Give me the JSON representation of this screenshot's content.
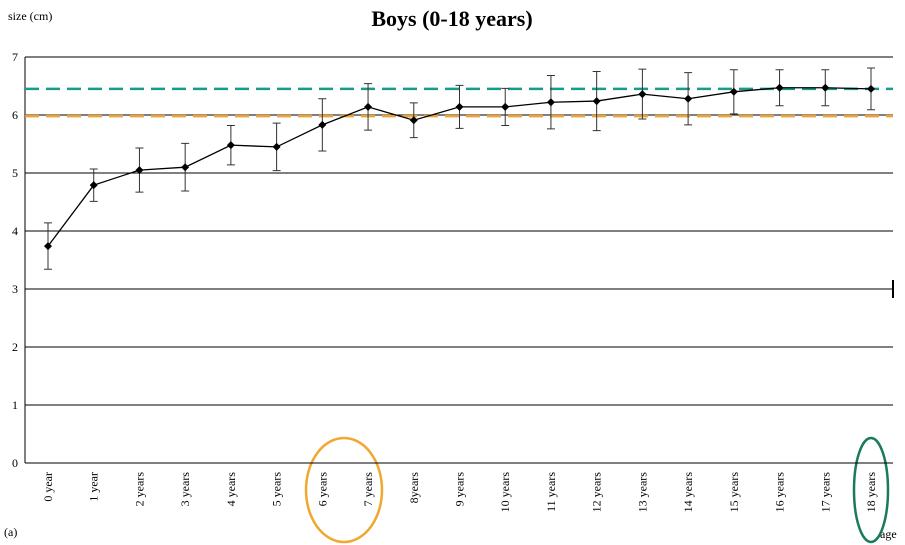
{
  "chart_data": {
    "type": "line",
    "title": "Boys (0-18 years)",
    "y_label": "size (cm)",
    "x_label": "age",
    "panel_label": "(a)",
    "categories": [
      "0 year",
      "1 year",
      "2 years",
      "3 years",
      "4 years",
      "5 years",
      "6 years",
      "7 years",
      "8years",
      "9 years",
      "10 years",
      "11 years",
      "12 years",
      "13 years",
      "14 years",
      "15 years",
      "16 years",
      "17 years",
      "18 years"
    ],
    "series": [
      {
        "color": "#000000",
        "values": [
          3.74,
          4.79,
          5.05,
          5.1,
          5.48,
          5.45,
          5.83,
          6.14,
          5.91,
          6.14,
          6.14,
          6.22,
          6.24,
          6.36,
          6.28,
          6.4,
          6.47,
          6.47,
          6.45
        ],
        "errors": [
          0.4,
          0.28,
          0.38,
          0.41,
          0.34,
          0.41,
          0.45,
          0.4,
          0.3,
          0.37,
          0.32,
          0.46,
          0.51,
          0.43,
          0.45,
          0.38,
          0.31,
          0.31,
          0.36
        ]
      }
    ],
    "reference_lines": [
      {
        "value": 6.45,
        "color": "#1a9a8a"
      },
      {
        "value": 5.98,
        "color": "#f0a030"
      }
    ],
    "ylim": [
      0,
      7
    ],
    "yticks": [
      0,
      1,
      2,
      3,
      4,
      5,
      6,
      7
    ],
    "grid": true
  }
}
